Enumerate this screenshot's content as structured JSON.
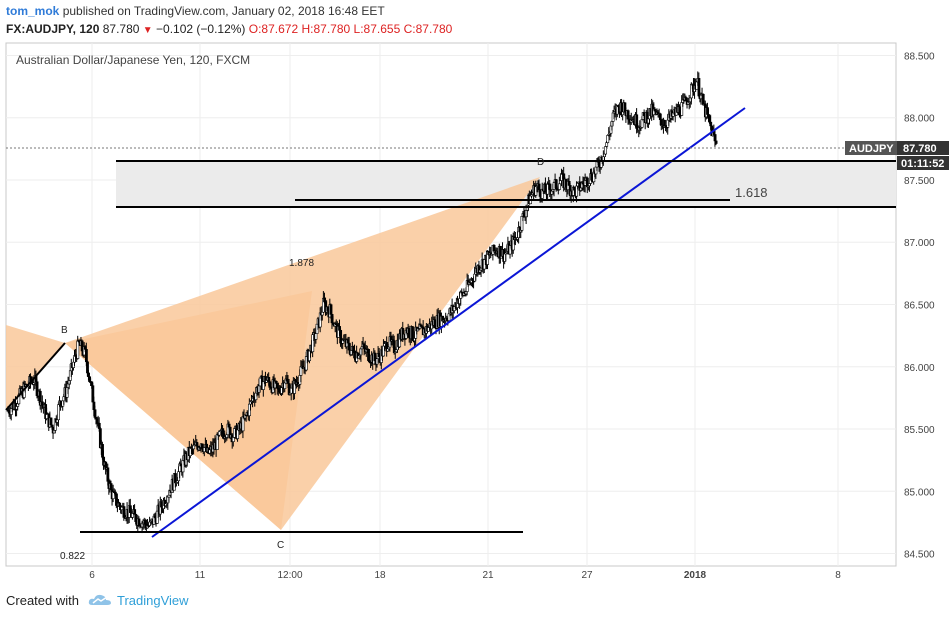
{
  "header": {
    "user": "tom_mok",
    "published": "published on TradingView.com, January 02, 2018 16:48 EET",
    "symbol": "FX:AUDJPY, 120",
    "last": "87.780",
    "change": "−0.102 (−0.12%)",
    "open": "O:87.672",
    "high": "H:87.780",
    "low": "L:87.655",
    "close": "C:87.780"
  },
  "footer": {
    "created": "Created with",
    "brand": "TradingView"
  },
  "chart_data": {
    "type": "candlestick",
    "title": "Australian Dollar/Japanese Yen, 120, FXCM",
    "symbol_tag": "AUDJPY",
    "last_price": "87.780",
    "countdown": "01:11:52",
    "ylim": [
      84.4,
      88.6
    ],
    "yticks": [
      "88.500",
      "88.000",
      "87.500",
      "87.000",
      "86.500",
      "86.000",
      "85.500",
      "85.000",
      "84.500"
    ],
    "xticks": [
      "6",
      "11",
      "12:00",
      "18",
      "21",
      "27",
      "2018",
      "8"
    ],
    "colors": {
      "up": "#ffffff",
      "down": "#000000",
      "pattern": "#f9c89a",
      "trendline": "#0b16d6",
      "zone": "#e8e8e8"
    },
    "harmonic": {
      "points": [
        {
          "label": "B",
          "x": "Dec 4",
          "y": 86.21
        },
        {
          "label": "C",
          "x": "Dec 11",
          "y": 84.7
        },
        {
          "label": "D",
          "x": "Dec 22",
          "y": 87.55
        }
      ],
      "ratios": [
        "1.878",
        "0.822",
        "1.618"
      ]
    },
    "horizontal_levels": [
      87.68,
      87.31,
      87.37,
      84.69
    ],
    "close_path": [
      85.65,
      85.7,
      85.78,
      85.85,
      85.9,
      85.75,
      85.6,
      85.5,
      85.7,
      85.8,
      86.0,
      86.18,
      86.1,
      85.8,
      85.5,
      85.2,
      85.0,
      84.9,
      84.85,
      84.82,
      84.78,
      84.75,
      84.72,
      84.8,
      84.9,
      85.0,
      85.1,
      85.2,
      85.3,
      85.35,
      85.4,
      85.3,
      85.35,
      85.45,
      85.5,
      85.45,
      85.5,
      85.6,
      85.75,
      85.85,
      85.9,
      85.85,
      85.8,
      85.9,
      85.8,
      85.9,
      86.0,
      86.15,
      86.3,
      86.5,
      86.45,
      86.3,
      86.2,
      86.15,
      86.1,
      86.15,
      86.1,
      86.05,
      86.1,
      86.2,
      86.15,
      86.25,
      86.3,
      86.25,
      86.28,
      86.3,
      86.35,
      86.38,
      86.4,
      86.45,
      86.55,
      86.6,
      86.7,
      86.8,
      86.85,
      86.9,
      86.95,
      86.9,
      86.95,
      87.05,
      87.2,
      87.35,
      87.45,
      87.4,
      87.42,
      87.45,
      87.5,
      87.45,
      87.4,
      87.45,
      87.5,
      87.55,
      87.65,
      87.8,
      88.0,
      88.1,
      88.05,
      88.0,
      87.95,
      88.0,
      88.05,
      88.0,
      87.95,
      88.0,
      88.05,
      88.1,
      88.2,
      88.3,
      88.1,
      87.95,
      87.78
    ]
  }
}
